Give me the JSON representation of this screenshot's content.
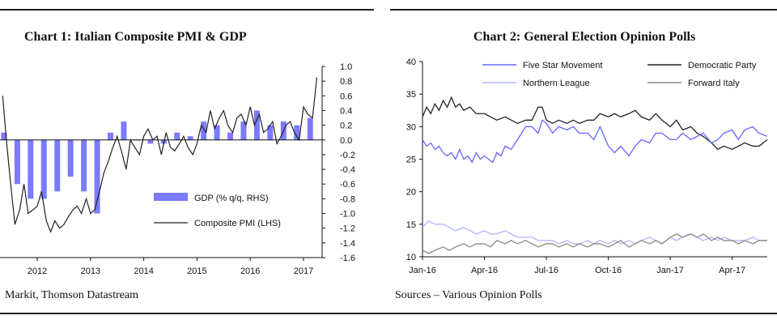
{
  "chart_data": [
    {
      "type": "bar",
      "title": "Chart 1: Italian Composite PMI & GDP",
      "source": "Markit, Thomson Datastream",
      "x_tick_labels": [
        "2012",
        "2013",
        "2014",
        "2015",
        "2016",
        "2017"
      ],
      "x_ticks": [
        2012,
        2013,
        2014,
        2015,
        2016,
        2017
      ],
      "xlim": [
        2011.3,
        2017.35
      ],
      "right_axis": {
        "ticks": [
          "1.0",
          "0.8",
          "0.6",
          "0.4",
          "0.2",
          "0.0",
          "-0.2",
          "-0.4",
          "-0.6",
          "-0.8",
          "-1.0",
          "-1.2",
          "-1.4",
          "-1.6"
        ],
        "ylim": [
          -1.6,
          1.0
        ]
      },
      "legend": {
        "position": "bottom-right"
      },
      "series": [
        {
          "name": "GDP (% q/q, RHS)",
          "kind": "bar",
          "color": "#7b7bff",
          "x": [
            2011.375,
            2011.625,
            2011.875,
            2012.125,
            2012.375,
            2012.625,
            2012.875,
            2013.125,
            2013.375,
            2013.625,
            2013.875,
            2014.125,
            2014.375,
            2014.625,
            2014.875,
            2015.125,
            2015.375,
            2015.625,
            2015.875,
            2016.125,
            2016.375,
            2016.625,
            2016.875,
            2017.125
          ],
          "values": [
            0.1,
            -0.6,
            -0.8,
            -0.8,
            -0.7,
            -0.5,
            -0.7,
            -1.0,
            0.1,
            0.25,
            0.0,
            -0.05,
            -0.05,
            0.1,
            0.05,
            0.25,
            0.2,
            0.1,
            0.25,
            0.4,
            0.2,
            0.25,
            0.2,
            0.3
          ]
        },
        {
          "name": "Composite PMI (LHS)",
          "kind": "line",
          "color": "#222222",
          "x": [
            2011.35,
            2011.42,
            2011.5,
            2011.58,
            2011.67,
            2011.75,
            2011.83,
            2011.92,
            2012.0,
            2012.08,
            2012.17,
            2012.25,
            2012.33,
            2012.42,
            2012.5,
            2012.58,
            2012.67,
            2012.75,
            2012.83,
            2012.92,
            2013.0,
            2013.08,
            2013.17,
            2013.25,
            2013.33,
            2013.42,
            2013.5,
            2013.58,
            2013.67,
            2013.75,
            2013.83,
            2013.92,
            2014.0,
            2014.08,
            2014.17,
            2014.25,
            2014.33,
            2014.42,
            2014.5,
            2014.58,
            2014.67,
            2014.75,
            2014.83,
            2014.92,
            2015.0,
            2015.08,
            2015.17,
            2015.25,
            2015.33,
            2015.42,
            2015.5,
            2015.58,
            2015.67,
            2015.75,
            2015.83,
            2015.92,
            2016.0,
            2016.08,
            2016.17,
            2016.25,
            2016.33,
            2016.42,
            2016.5,
            2016.58,
            2016.67,
            2016.75,
            2016.83,
            2016.92,
            2017.0,
            2017.08,
            2017.17,
            2017.25
          ],
          "values": [
            0.6,
            0.0,
            -0.6,
            -1.15,
            -0.95,
            -0.6,
            -1.0,
            -0.95,
            -0.9,
            -0.7,
            -1.1,
            -1.25,
            -1.1,
            -1.2,
            -1.15,
            -1.05,
            -0.95,
            -0.9,
            -1.0,
            -0.8,
            -1.0,
            -0.95,
            -0.7,
            -0.45,
            -0.3,
            -0.1,
            0.05,
            -0.15,
            -0.4,
            0.0,
            -0.1,
            -0.2,
            0.05,
            0.15,
            0.0,
            0.05,
            -0.2,
            0.1,
            -0.1,
            -0.15,
            -0.05,
            0.05,
            -0.1,
            -0.2,
            -0.05,
            0.2,
            0.1,
            0.4,
            0.15,
            0.3,
            0.4,
            0.2,
            0.1,
            0.3,
            0.35,
            0.2,
            0.45,
            0.2,
            0.35,
            0.1,
            0.15,
            0.25,
            -0.05,
            0.05,
            0.2,
            0.25,
            0.1,
            0.0,
            0.45,
            0.35,
            0.3,
            0.85
          ]
        }
      ]
    },
    {
      "type": "line",
      "title": "Chart 2: General Election Opinion Polls",
      "source": "Sources – Various Opinion Polls",
      "x_tick_labels": [
        "Jan-16",
        "Apr-16",
        "Jul-16",
        "Oct-16",
        "Jan-17",
        "Apr-17"
      ],
      "x_ticks": [
        0,
        3,
        6,
        9,
        12,
        15
      ],
      "xlim": [
        0,
        16.7
      ],
      "y_ticks": [
        "40",
        "35",
        "30",
        "25",
        "20",
        "15",
        "10"
      ],
      "ylim": [
        10,
        40
      ],
      "grid": false,
      "legend": {
        "position": "top"
      },
      "series": [
        {
          "name": "Five Star Movement",
          "color": "#6666ff",
          "x": [
            0,
            0.2,
            0.4,
            0.6,
            0.8,
            1.0,
            1.2,
            1.4,
            1.6,
            1.8,
            2.0,
            2.2,
            2.4,
            2.6,
            2.8,
            3.0,
            3.2,
            3.4,
            3.6,
            3.8,
            4.0,
            4.3,
            4.6,
            5.0,
            5.3,
            5.6,
            5.8,
            6.0,
            6.3,
            6.6,
            7.0,
            7.3,
            7.6,
            8.0,
            8.3,
            8.6,
            9.0,
            9.3,
            9.6,
            10.0,
            10.3,
            10.6,
            11.0,
            11.3,
            11.6,
            12.0,
            12.3,
            12.6,
            13.0,
            13.3,
            13.6,
            14.0,
            14.3,
            14.6,
            15.0,
            15.3,
            15.6,
            16.0,
            16.3,
            16.7
          ],
          "values": [
            28,
            27,
            27.5,
            26.5,
            27,
            26,
            25.5,
            26,
            25,
            26.5,
            25,
            25.5,
            24.5,
            26,
            25,
            25.5,
            25,
            24.5,
            26,
            25.5,
            27,
            26.5,
            28,
            30,
            30,
            29,
            31,
            30.5,
            29,
            30,
            29.5,
            30,
            29,
            29,
            28,
            30,
            27,
            26,
            27,
            25.5,
            27,
            28,
            27.5,
            29,
            29,
            28,
            28,
            29,
            28,
            28.5,
            29,
            27.5,
            28,
            29,
            29.5,
            28,
            29.5,
            30,
            29,
            28.5
          ]
        },
        {
          "name": "Democratic Party",
          "color": "#222222",
          "x": [
            0,
            0.2,
            0.4,
            0.6,
            0.8,
            1.0,
            1.2,
            1.4,
            1.6,
            1.8,
            2.0,
            2.3,
            2.6,
            3.0,
            3.3,
            3.6,
            4.0,
            4.3,
            4.6,
            5.0,
            5.3,
            5.6,
            5.8,
            6.0,
            6.3,
            6.6,
            7.0,
            7.3,
            7.6,
            8.0,
            8.3,
            8.6,
            9.0,
            9.3,
            9.6,
            10.0,
            10.3,
            10.6,
            11.0,
            11.3,
            11.6,
            12.0,
            12.3,
            12.6,
            13.0,
            13.3,
            13.6,
            14.0,
            14.3,
            14.6,
            15.0,
            15.3,
            15.6,
            16.0,
            16.3,
            16.7
          ],
          "values": [
            31.5,
            33,
            32,
            33.5,
            32.5,
            34,
            33,
            34.5,
            33,
            33.5,
            32.5,
            33,
            32,
            32,
            31.5,
            31,
            31.5,
            31,
            30.5,
            31,
            31,
            33,
            33,
            31,
            30.5,
            31,
            30.5,
            31,
            30.5,
            31,
            31,
            32,
            31.5,
            32,
            31.5,
            32,
            32.5,
            31.5,
            31,
            32,
            31,
            30,
            31,
            29.5,
            30,
            29,
            28.5,
            27.5,
            26.5,
            27,
            26.5,
            27,
            27.5,
            27,
            27,
            28
          ]
        },
        {
          "name": "Northern League",
          "color": "#b3b3ff",
          "x": [
            0,
            0.3,
            0.6,
            1.0,
            1.3,
            1.6,
            2.0,
            2.3,
            2.6,
            3.0,
            3.3,
            3.6,
            4.0,
            4.3,
            4.6,
            5.0,
            5.3,
            5.6,
            6.0,
            6.3,
            6.6,
            7.0,
            7.3,
            7.6,
            8.0,
            8.3,
            8.6,
            9.0,
            9.3,
            9.6,
            10.0,
            10.3,
            10.6,
            11.0,
            11.3,
            11.6,
            12.0,
            12.3,
            12.6,
            13.0,
            13.3,
            13.6,
            14.0,
            14.3,
            14.6,
            15.0,
            15.3,
            15.6,
            16.0,
            16.3,
            16.7
          ],
          "values": [
            14.5,
            15.5,
            15,
            15,
            14.5,
            14,
            14.5,
            14,
            13.5,
            14,
            13.5,
            13.5,
            14,
            13.5,
            13,
            13,
            13,
            12.5,
            12.5,
            12.5,
            12,
            12.5,
            12,
            12,
            12.5,
            12,
            12.5,
            12,
            12.5,
            12,
            12.5,
            12,
            12.5,
            13,
            12.5,
            12,
            13,
            12.5,
            13,
            13.5,
            13,
            12.5,
            13,
            12.5,
            13,
            12.5,
            12.5,
            12.5,
            13,
            12.5,
            12.5
          ]
        },
        {
          "name": "Forward Italy",
          "color": "#888888",
          "x": [
            0,
            0.3,
            0.6,
            1.0,
            1.3,
            1.6,
            2.0,
            2.3,
            2.6,
            3.0,
            3.3,
            3.6,
            4.0,
            4.3,
            4.6,
            5.0,
            5.3,
            5.6,
            6.0,
            6.3,
            6.6,
            7.0,
            7.3,
            7.6,
            8.0,
            8.3,
            8.6,
            9.0,
            9.3,
            9.6,
            10.0,
            10.3,
            10.6,
            11.0,
            11.3,
            11.6,
            12.0,
            12.3,
            12.6,
            13.0,
            13.3,
            13.6,
            14.0,
            14.3,
            14.6,
            15.0,
            15.3,
            15.6,
            16.0,
            16.3,
            16.7
          ],
          "values": [
            11,
            10.5,
            11,
            11.5,
            11,
            11.5,
            12,
            11.5,
            12,
            12,
            11.5,
            12.5,
            12,
            12.5,
            12,
            12.5,
            12,
            11.5,
            12,
            12,
            11.5,
            12,
            11.5,
            12,
            11.5,
            12,
            12,
            11.5,
            12,
            12.5,
            11.5,
            12,
            12.5,
            12,
            12.5,
            12,
            13,
            13.5,
            13,
            13.5,
            13,
            13.5,
            12.5,
            13,
            12.5,
            12.5,
            12,
            12.5,
            12,
            12.5,
            12.5
          ]
        }
      ]
    }
  ]
}
